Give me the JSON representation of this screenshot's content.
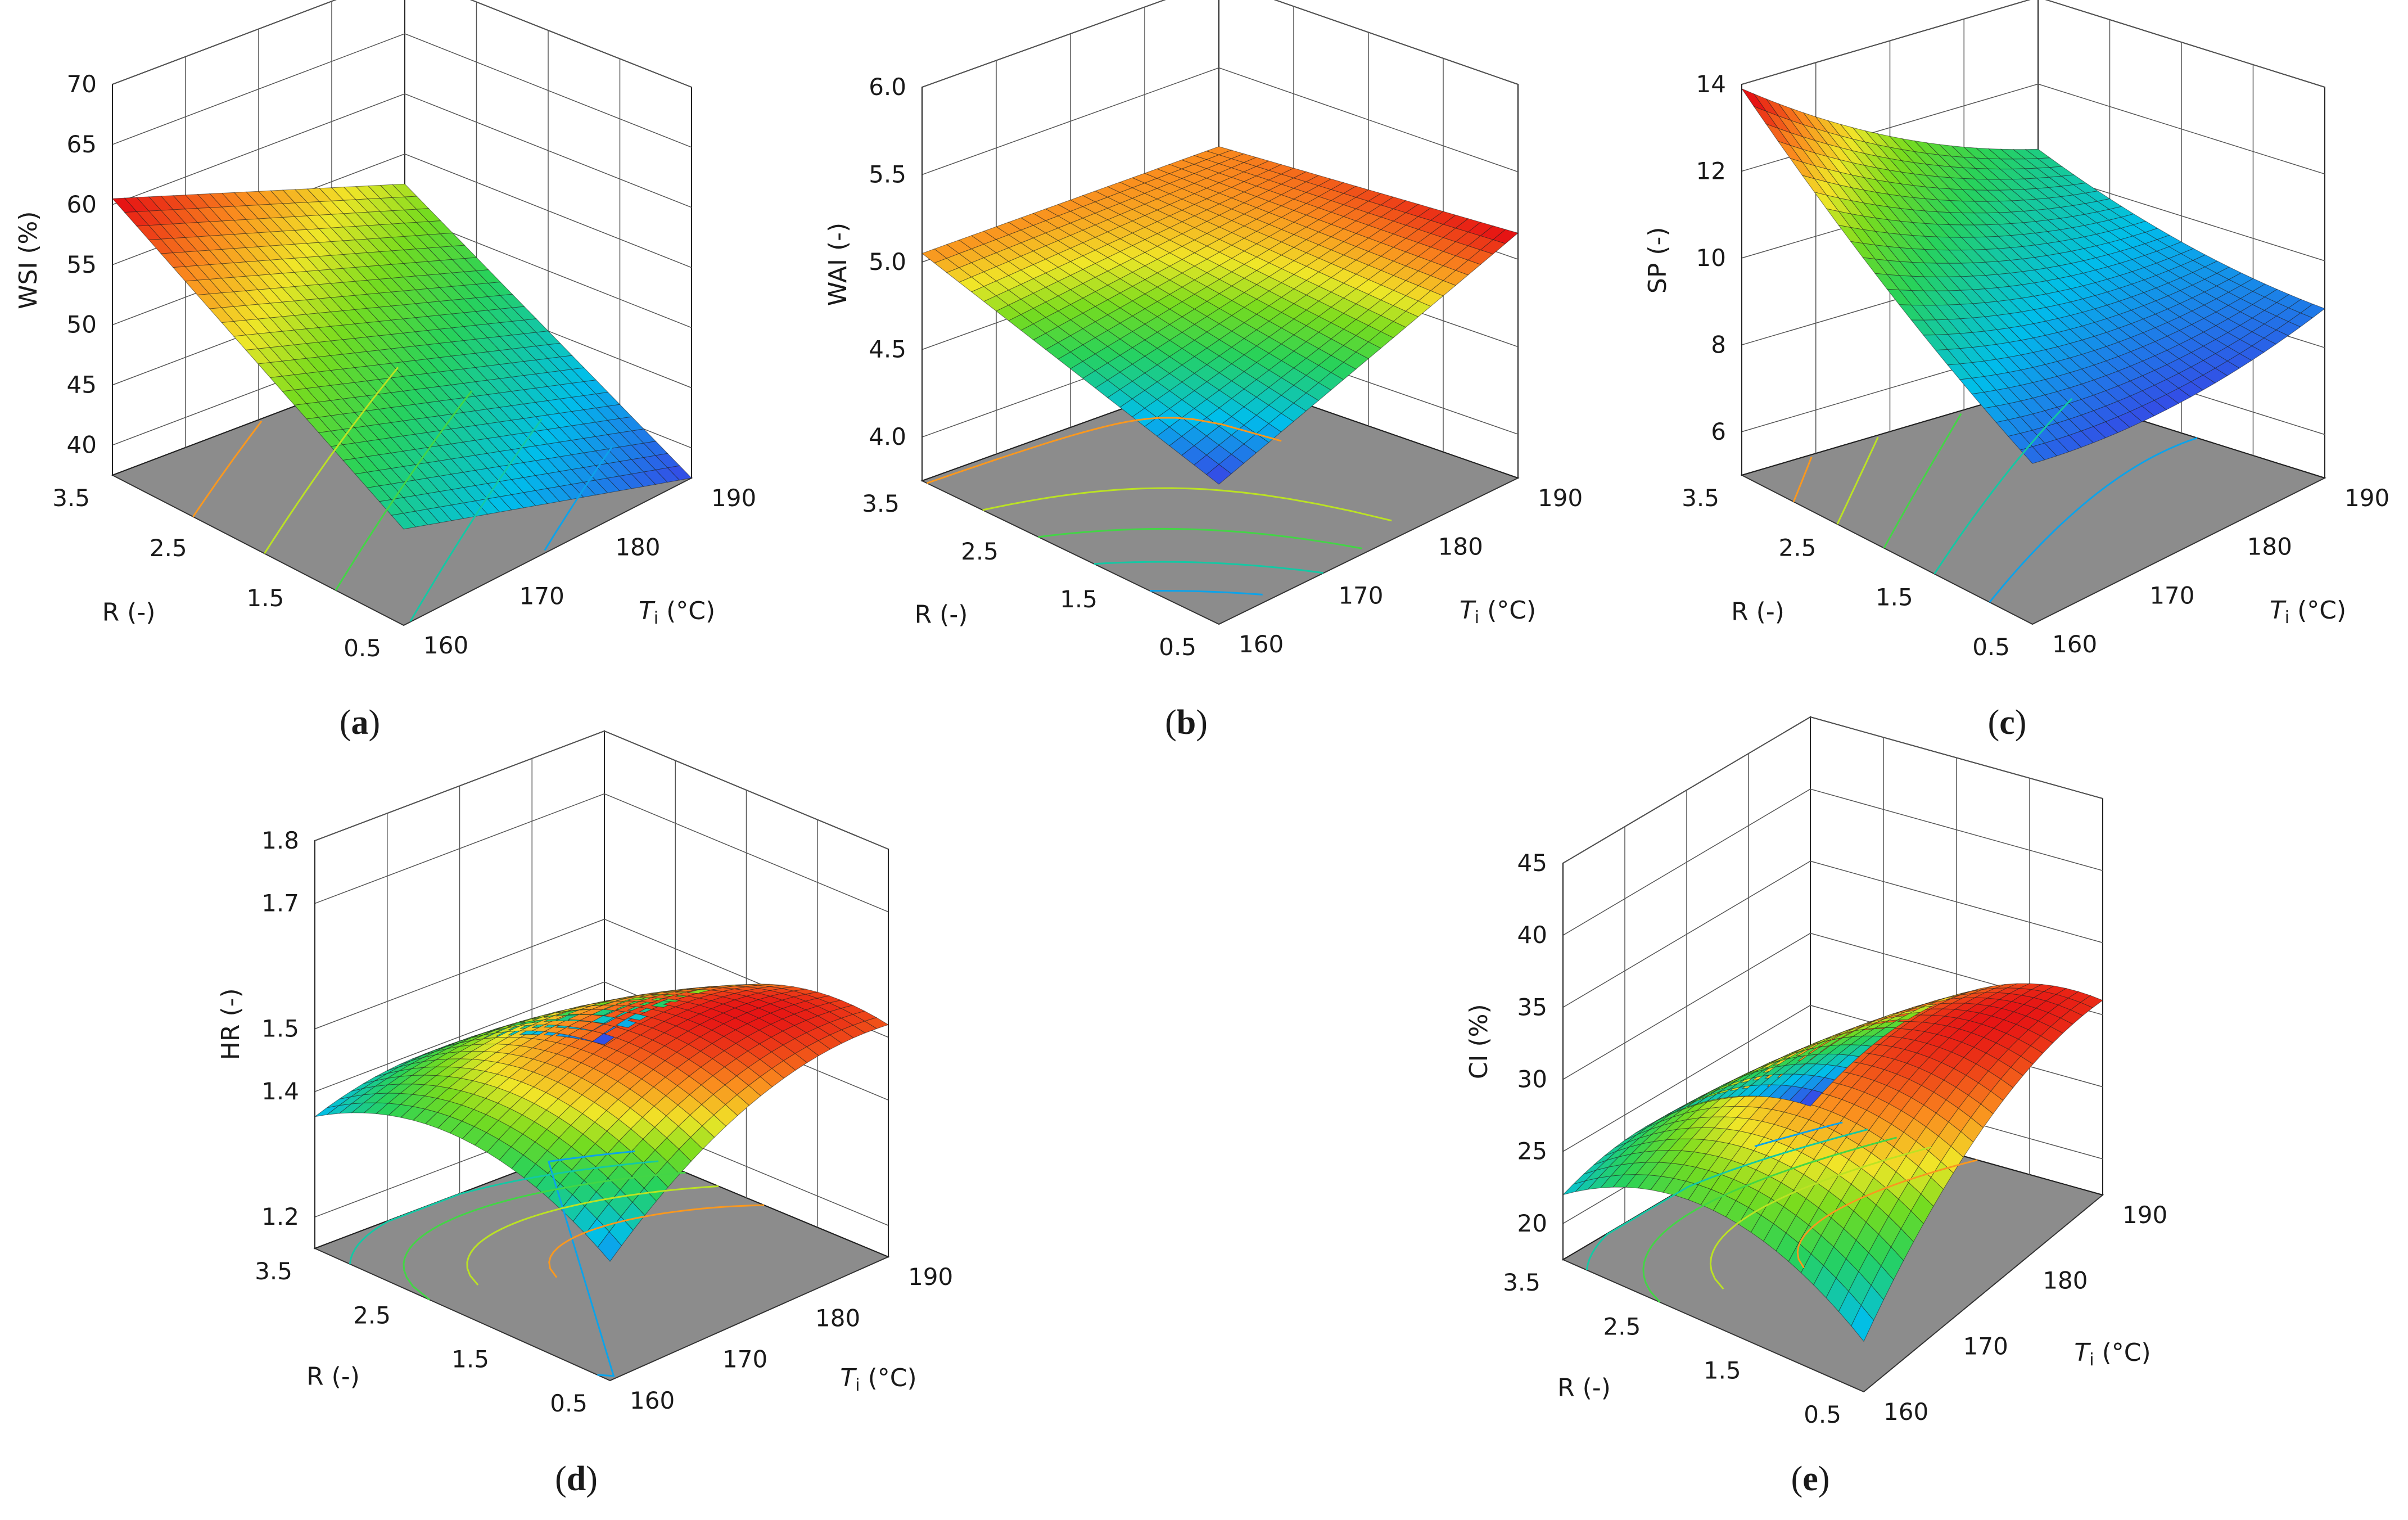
{
  "chart_data": [
    {
      "type": "surface3d",
      "panel_label": "a",
      "zlabel": "WSI (%)",
      "xlabel": "R (-)",
      "ylabel_main": "T",
      "ylabel_sub": "i",
      "ylabel_unit": " (°C)",
      "x_ticks": [
        "3.5",
        "2.5",
        "1.5",
        "0.5"
      ],
      "y_ticks": [
        "160",
        "170",
        "180",
        "190"
      ],
      "z_ticks": [
        "40",
        "45",
        "50",
        "55",
        "60",
        "65",
        "70"
      ],
      "xlim": [
        0.5,
        3.5
      ],
      "ylim": [
        160,
        190
      ],
      "zlim": [
        37.5,
        70
      ],
      "coef": {
        "b0": 49,
        "bR": 7.5,
        "bT": -4,
        "bRT": 0,
        "bRR": 0,
        "bTT": 0
      }
    },
    {
      "type": "surface3d",
      "panel_label": "b",
      "zlabel": "WAI (-)",
      "xlabel": "R (-)",
      "ylabel_main": "T",
      "ylabel_sub": "i",
      "ylabel_unit": " (°C)",
      "x_ticks": [
        "3.5",
        "2.5",
        "1.5",
        "0.5"
      ],
      "y_ticks": [
        "160",
        "170",
        "180",
        "190"
      ],
      "z_ticks": [
        "4.0",
        "4.5",
        "5.0",
        "5.5",
        "6.0"
      ],
      "xlim": [
        0.5,
        3.5
      ],
      "ylim": [
        160,
        190
      ],
      "zlim": [
        3.75,
        6.0
      ],
      "coef": {
        "b0": 4.95,
        "bR": 0.1,
        "bT": 0.15,
        "bRT": -0.15,
        "bRR": 0,
        "bTT": 0
      }
    },
    {
      "type": "surface3d",
      "panel_label": "c",
      "zlabel": "SP (-)",
      "xlabel": "R (-)",
      "ylabel_main": "T",
      "ylabel_sub": "i",
      "ylabel_unit": " (°C)",
      "x_ticks": [
        "3.5",
        "2.5",
        "1.5",
        "0.5"
      ],
      "y_ticks": [
        "160",
        "170",
        "180",
        "190"
      ],
      "z_ticks": [
        "6",
        "8",
        "10",
        "12",
        "14"
      ],
      "xlim": [
        0.5,
        3.5
      ],
      "ylim": [
        160,
        190
      ],
      "zlim": [
        5,
        14
      ],
      "coef": {
        "b0": 9.8,
        "bR": 1.7,
        "bT": -0.8,
        "bRT": -0.9,
        "bRR": 0.3,
        "bTT": 0.4
      }
    },
    {
      "type": "surface3d",
      "panel_label": "d",
      "zlabel": "HR (-)",
      "xlabel": "R (-)",
      "ylabel_main": "T",
      "ylabel_sub": "i",
      "ylabel_unit": " (°C)",
      "x_ticks": [
        "3.5",
        "2.5",
        "1.5",
        "0.5"
      ],
      "y_ticks": [
        "160",
        "170",
        "180",
        "190"
      ],
      "z_ticks": [
        "1.2",
        "1.4",
        "1.5",
        "1.7",
        "1.8"
      ],
      "xlim": [
        0.5,
        3.5
      ],
      "ylim": [
        160,
        190
      ],
      "zlim": [
        1.15,
        1.8
      ],
      "coef": {
        "b0": 1.52,
        "bR": -0.05,
        "bT": 0.03,
        "bRT": -0.06,
        "bRR": -0.08,
        "bTT": -0.06
      }
    },
    {
      "type": "surface3d",
      "panel_label": "e",
      "zlabel": "CI (%)",
      "xlabel": "R (-)",
      "ylabel_main": "T",
      "ylabel_sub": "i",
      "ylabel_unit": " (°C)",
      "x_ticks": [
        "3.5",
        "2.5",
        "1.5",
        "0.5"
      ],
      "y_ticks": [
        "160",
        "170",
        "180",
        "190"
      ],
      "z_ticks": [
        "20",
        "25",
        "30",
        "35",
        "40",
        "45"
      ],
      "xlim": [
        0.5,
        3.5
      ],
      "ylim": [
        160,
        190
      ],
      "zlim": [
        17.5,
        45
      ],
      "coef": {
        "b0": 30,
        "bR": -3,
        "bT": 1.5,
        "bRT": -3.5,
        "bRR": -4,
        "bTT": -3
      }
    }
  ]
}
